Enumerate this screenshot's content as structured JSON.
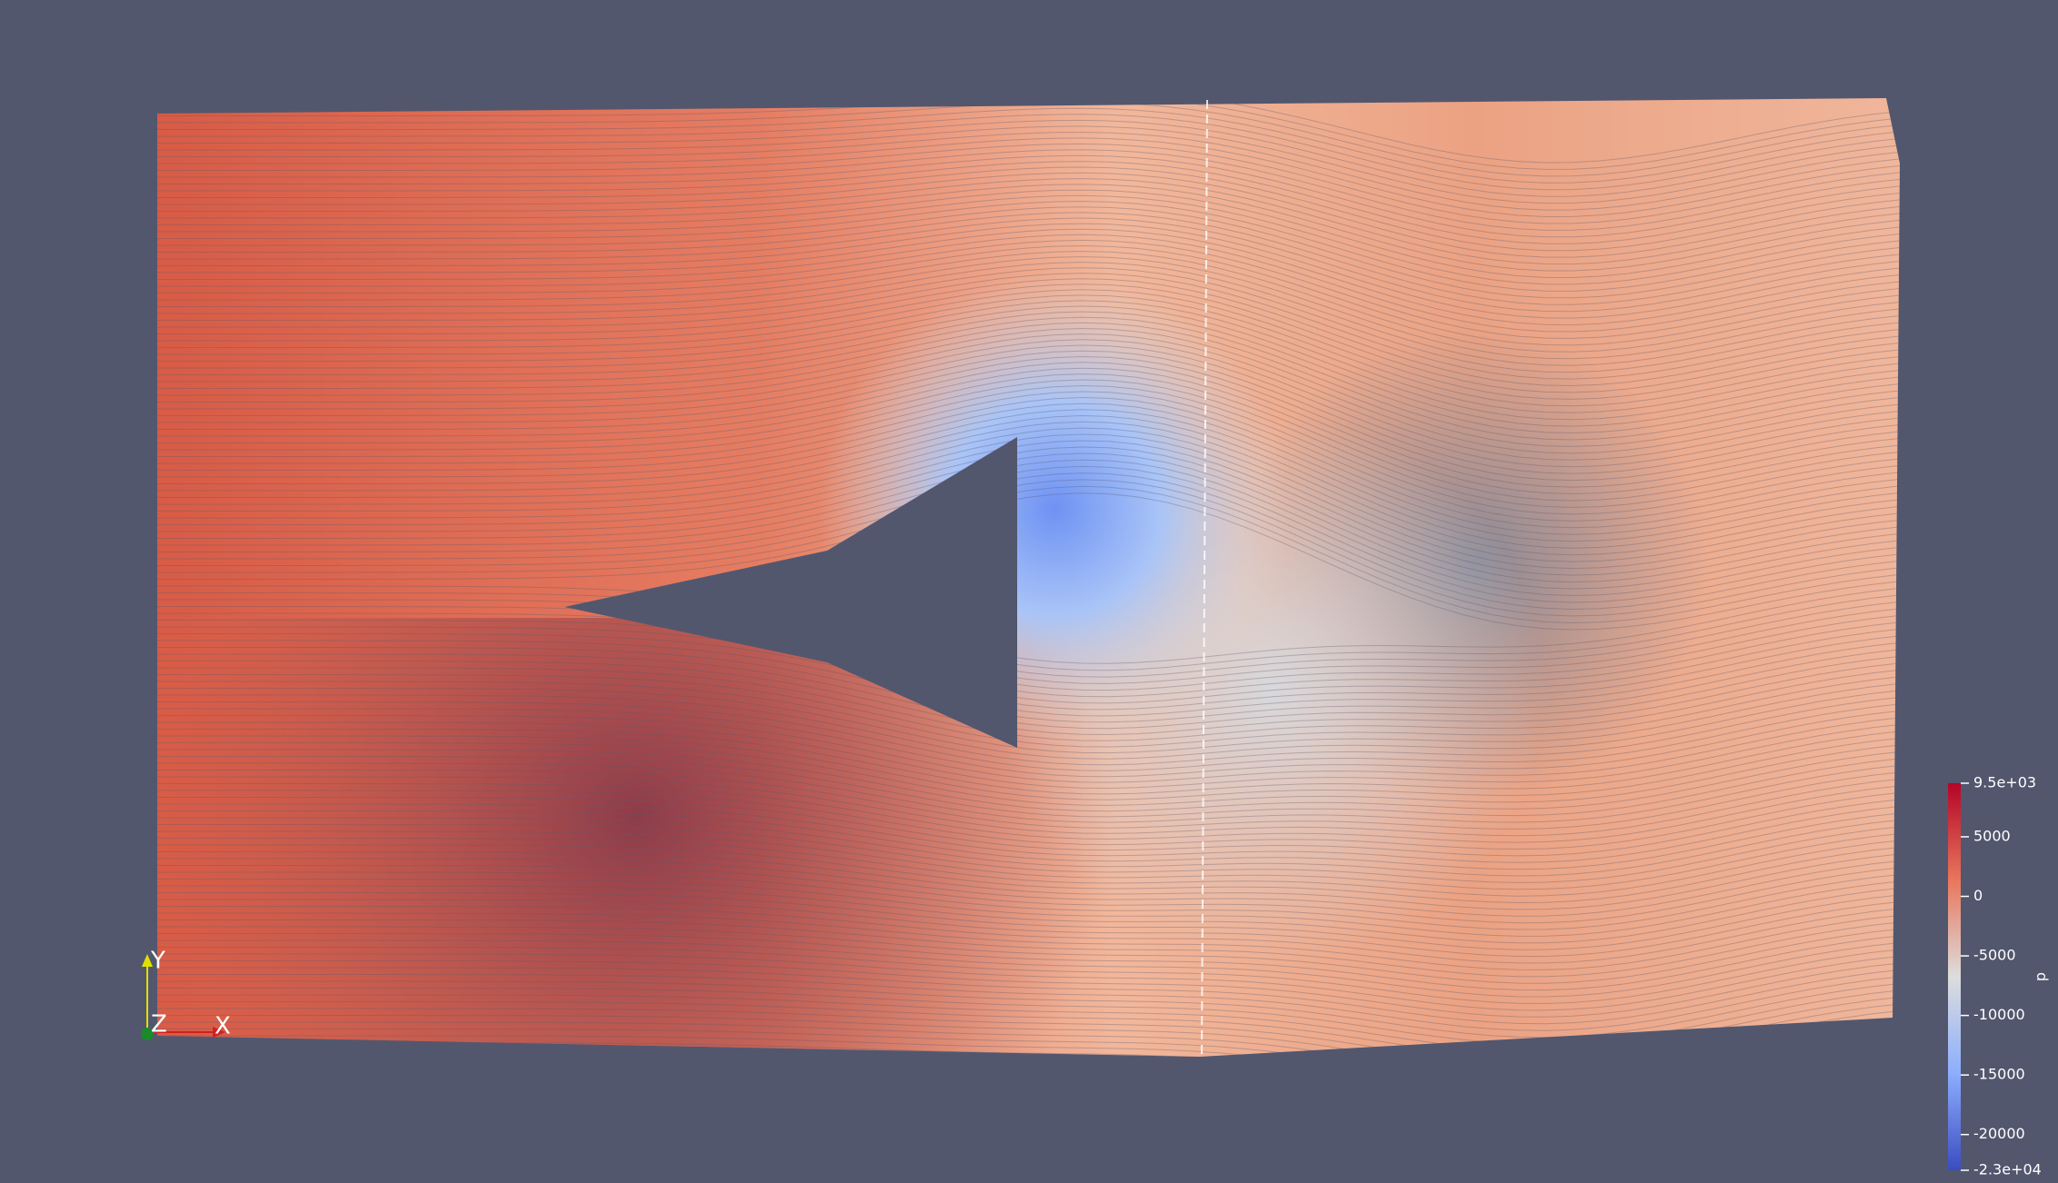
{
  "colorbar": {
    "title": "p",
    "range": [
      -23000,
      9500
    ],
    "ticks": [
      {
        "value": 9500,
        "label": "9.5e+03"
      },
      5000,
      0,
      -5000,
      -10000,
      -15000,
      -20000,
      {
        "value": -23000,
        "label": "-2.3e+04"
      }
    ]
  },
  "axes_triad": {
    "x": "X",
    "y": "Y",
    "z": "Z"
  }
}
